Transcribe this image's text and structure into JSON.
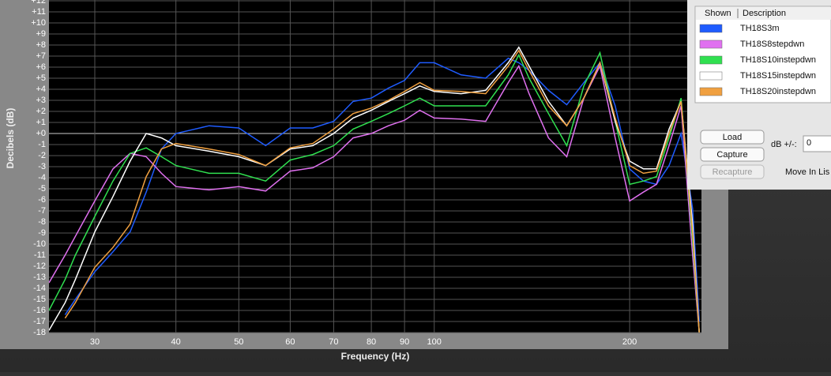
{
  "chart_data": {
    "type": "line",
    "x_label": "Frequency (Hz)",
    "y_label": "Decibels (dB)",
    "log_x": true,
    "grid": true,
    "xlim": [
      25.5,
      258
    ],
    "ylim": [
      -18,
      12
    ],
    "xticks": [
      30,
      40,
      50,
      60,
      70,
      80,
      90,
      100,
      200
    ],
    "yticks": [
      {
        "value": 12,
        "label": "+12"
      },
      {
        "value": 11,
        "label": "+11"
      },
      {
        "value": 10,
        "label": "+10"
      },
      {
        "value": 9,
        "label": "+9"
      },
      {
        "value": 8,
        "label": "+8"
      },
      {
        "value": 7,
        "label": "+7"
      },
      {
        "value": 6,
        "label": "+6"
      },
      {
        "value": 5,
        "label": "+5"
      },
      {
        "value": 4,
        "label": "+4"
      },
      {
        "value": 3,
        "label": "+3"
      },
      {
        "value": 2,
        "label": "+2"
      },
      {
        "value": 1,
        "label": "+1"
      },
      {
        "value": 0,
        "label": "+0"
      },
      -1,
      -2,
      -3,
      -4,
      -5,
      -6,
      -7,
      -8,
      -9,
      -10,
      -11,
      -12,
      -13,
      -14,
      -15,
      -16,
      -17,
      -18
    ],
    "x": [
      25.5,
      27,
      28,
      30,
      32,
      34,
      36,
      38,
      40,
      45,
      50,
      55,
      60,
      65,
      70,
      75,
      80,
      85,
      90,
      95,
      100,
      110,
      120,
      130,
      135,
      140,
      150,
      160,
      170,
      180,
      190,
      200,
      210,
      220,
      230,
      240,
      250,
      256
    ],
    "series": [
      {
        "name": "TH18S3m",
        "color": "#1f5cff",
        "values": [
          null,
          -16.4,
          -15,
          -12.5,
          -10.7,
          -8.9,
          -5.3,
          -1.4,
          0,
          0.7,
          0.5,
          -1.1,
          0.5,
          0.5,
          1.1,
          2.9,
          3.2,
          4.1,
          4.8,
          6.4,
          6.4,
          5.3,
          5.0,
          6.8,
          6.4,
          5.7,
          3.9,
          2.6,
          4.6,
          6.4,
          2.5,
          -3.2,
          -4.3,
          -4.6,
          -2.9,
          0,
          -6.8,
          -17
        ]
      },
      {
        "name": "TH18S8stepdwn",
        "color": "#e070f0",
        "values": [
          -13.5,
          -11,
          -9.3,
          -6.1,
          -3.2,
          -1.8,
          -2.1,
          -3.6,
          -4.8,
          -5.1,
          -4.8,
          -5.2,
          -3.4,
          -3.1,
          -2.1,
          -0.4,
          0,
          0.7,
          1.2,
          2.1,
          1.4,
          1.3,
          1.1,
          4.6,
          6.1,
          3.6,
          -0.4,
          -2.1,
          3.2,
          6.1,
          -0.4,
          -6.1,
          -5.3,
          -4.6,
          -1.1,
          2.5,
          -11,
          -18
        ]
      },
      {
        "name": "TH18S10instepdwn",
        "color": "#30e050",
        "values": [
          -16,
          -13.2,
          -11,
          -7.5,
          -4.3,
          -1.8,
          -1.3,
          -2.1,
          -2.9,
          -3.6,
          -3.6,
          -4.3,
          -2.4,
          -1.9,
          -1.1,
          0.4,
          1.1,
          1.8,
          2.5,
          3.2,
          2.5,
          2.5,
          2.5,
          5.3,
          7.1,
          5.0,
          1.8,
          -1.1,
          4.3,
          7.3,
          1.1,
          -4.6,
          -4.3,
          -3.9,
          -0.4,
          3.2,
          -9.6,
          -18
        ]
      },
      {
        "name": "TH18S15instepdwn",
        "color": "#ffffff",
        "values": [
          -17.8,
          -15.3,
          -13.2,
          -8.9,
          -5.7,
          -2.5,
          0,
          -0.4,
          -1.1,
          -1.6,
          -2.1,
          -2.9,
          -1.4,
          -1.1,
          0,
          1.4,
          2.1,
          2.9,
          3.6,
          4.3,
          3.8,
          3.6,
          3.9,
          6.4,
          7.8,
          6.1,
          2.9,
          0.7,
          3.2,
          6.4,
          1.1,
          -2.5,
          -3.2,
          -3.2,
          0.4,
          2.9,
          -8.2,
          -18
        ]
      },
      {
        "name": "TH18S20instepdwn",
        "color": "#f0a040",
        "values": [
          null,
          -16.7,
          -15.3,
          -12.1,
          -10.3,
          -8.2,
          -3.9,
          -1.4,
          -0.9,
          -1.4,
          -1.9,
          -2.9,
          -1.3,
          -0.9,
          0.4,
          1.8,
          2.3,
          3.0,
          3.8,
          4.6,
          3.9,
          3.8,
          3.6,
          6.1,
          7.5,
          5.7,
          2.5,
          0.7,
          3.2,
          6.4,
          1.4,
          -2.9,
          -3.6,
          -3.4,
          0,
          2.9,
          -8.9,
          -18
        ]
      }
    ]
  },
  "panel": {
    "columns": [
      "Shown",
      "Description"
    ],
    "buttons": [
      "Load",
      "Capture",
      "Recapture"
    ],
    "db_label": "dB +/-:",
    "db_value": "0",
    "move_label": "Move In Lis"
  }
}
